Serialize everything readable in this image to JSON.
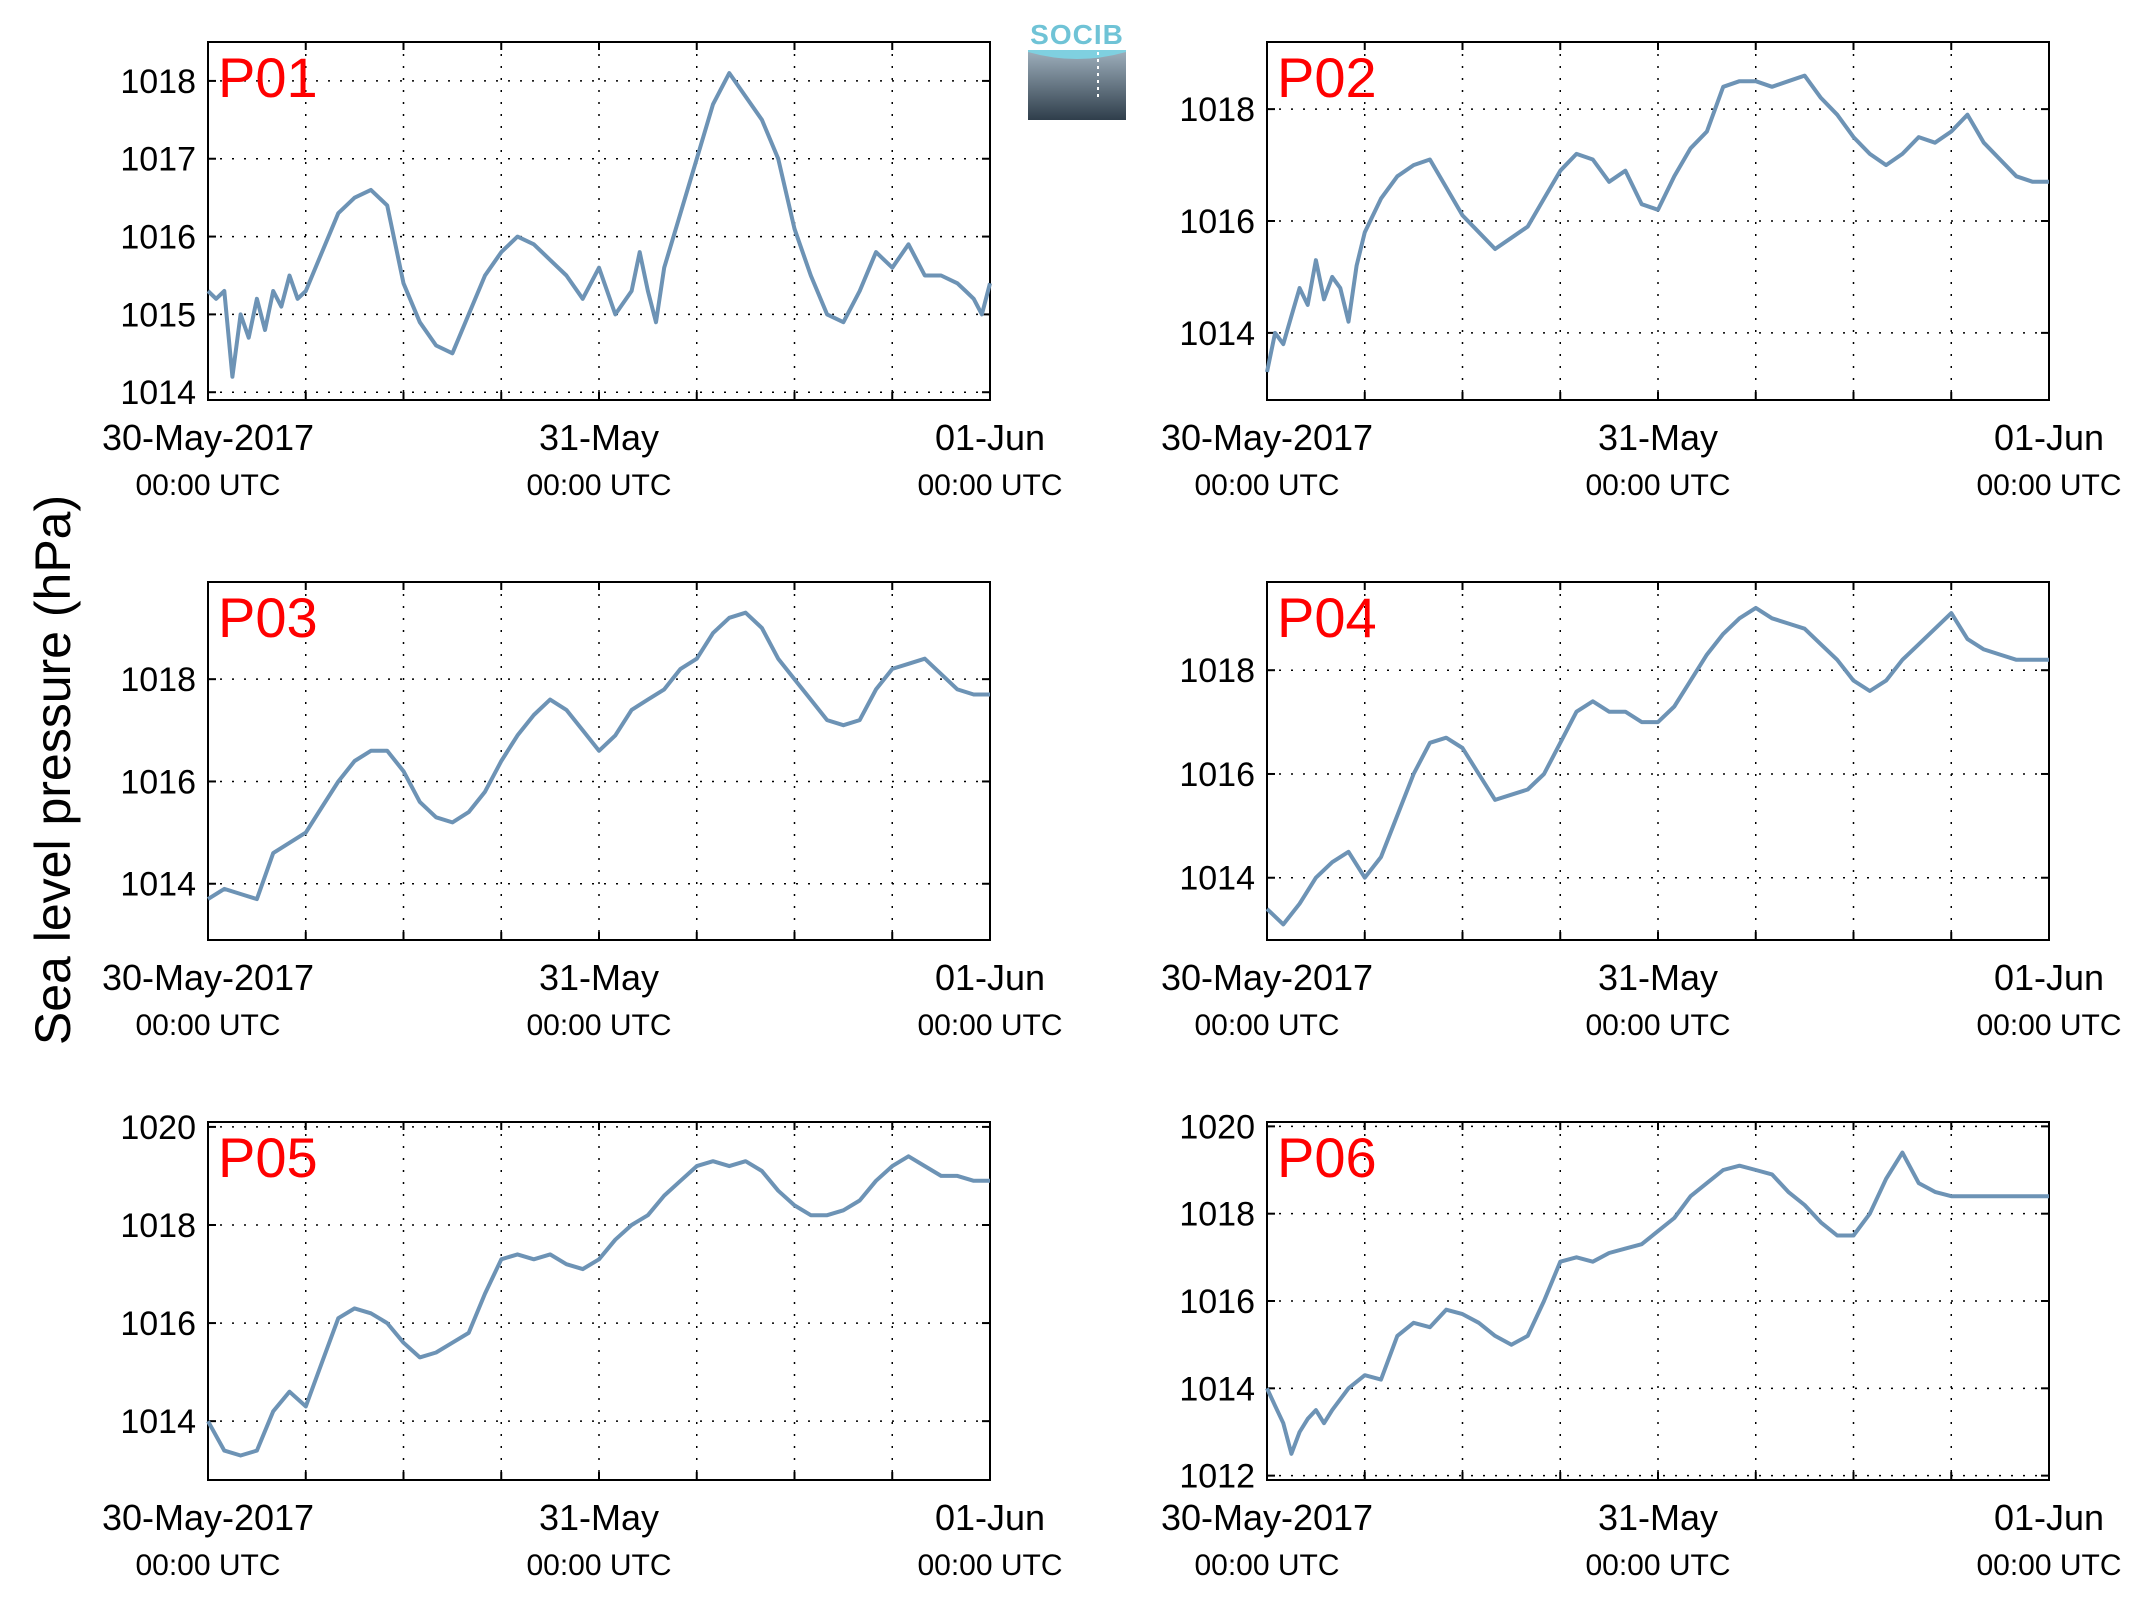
{
  "figure": {
    "ylabel": "Sea level pressure (hPa)",
    "logo_text": "SOCIB",
    "colors": {
      "line": "#6d93b5",
      "panel_label": "#ff0000",
      "axis": "#000000"
    }
  },
  "chart_data": [
    {
      "type": "line",
      "label": "P01",
      "x_ticks": [
        {
          "x": 0,
          "line1": "30-May-2017",
          "line2": "00:00 UTC"
        },
        {
          "x": 24,
          "line1": "31-May",
          "line2": "00:00 UTC"
        },
        {
          "x": 48,
          "line1": "01-Jun",
          "line2": "00:00 UTC"
        }
      ],
      "xlim": [
        0,
        48
      ],
      "ylim": [
        1013.9,
        1018.5
      ],
      "yticks": [
        1014,
        1015,
        1016,
        1017,
        1018
      ],
      "grid": true,
      "series": [
        {
          "x": [
            0,
            0.5,
            1,
            1.5,
            2,
            2.5,
            3,
            3.5,
            4,
            4.5,
            5,
            5.5,
            6,
            7,
            8,
            9,
            10,
            11,
            12,
            13,
            14,
            15,
            16,
            17,
            18,
            19,
            20,
            21,
            22,
            23,
            24,
            25,
            26,
            26.5,
            27,
            27.5,
            28,
            29,
            30,
            31,
            32,
            33,
            34,
            35,
            36,
            37,
            38,
            39,
            40,
            41,
            42,
            43,
            44,
            45,
            46,
            46.5,
            47,
            47.5,
            48
          ],
          "y": [
            1015.3,
            1015.2,
            1015.3,
            1014.2,
            1015.0,
            1014.7,
            1015.2,
            1014.8,
            1015.3,
            1015.1,
            1015.5,
            1015.2,
            1015.3,
            1015.8,
            1016.3,
            1016.5,
            1016.6,
            1016.4,
            1015.4,
            1014.9,
            1014.6,
            1014.5,
            1015.0,
            1015.5,
            1015.8,
            1016.0,
            1015.9,
            1015.7,
            1015.5,
            1015.2,
            1015.6,
            1015.0,
            1015.3,
            1015.8,
            1015.3,
            1014.9,
            1015.6,
            1016.3,
            1017.0,
            1017.7,
            1018.1,
            1017.8,
            1017.5,
            1017.0,
            1016.1,
            1015.5,
            1015.0,
            1014.9,
            1015.3,
            1015.8,
            1015.6,
            1015.9,
            1015.5,
            1015.5,
            1015.4,
            1015.3,
            1015.2,
            1015.0,
            1015.4
          ]
        }
      ]
    },
    {
      "type": "line",
      "label": "P02",
      "x_ticks": [
        {
          "x": 0,
          "line1": "30-May-2017",
          "line2": "00:00 UTC"
        },
        {
          "x": 24,
          "line1": "31-May",
          "line2": "00:00 UTC"
        },
        {
          "x": 48,
          "line1": "01-Jun",
          "line2": "00:00 UTC"
        }
      ],
      "xlim": [
        0,
        48
      ],
      "ylim": [
        1012.8,
        1019.2
      ],
      "yticks": [
        1014,
        1016,
        1018
      ],
      "grid": true,
      "series": [
        {
          "x": [
            0,
            0.5,
            1,
            1.5,
            2,
            2.5,
            3,
            3.5,
            4,
            4.5,
            5,
            5.5,
            6,
            7,
            8,
            9,
            10,
            11,
            12,
            13,
            14,
            15,
            16,
            17,
            18,
            19,
            20,
            21,
            22,
            23,
            24,
            25,
            26,
            27,
            28,
            29,
            30,
            31,
            32,
            33,
            34,
            35,
            36,
            37,
            38,
            39,
            40,
            41,
            42,
            43,
            44,
            45,
            46,
            47,
            48
          ],
          "y": [
            1013.3,
            1014.0,
            1013.8,
            1014.3,
            1014.8,
            1014.5,
            1015.3,
            1014.6,
            1015.0,
            1014.8,
            1014.2,
            1015.2,
            1015.8,
            1016.4,
            1016.8,
            1017.0,
            1017.1,
            1016.6,
            1016.1,
            1015.8,
            1015.5,
            1015.7,
            1015.9,
            1016.4,
            1016.9,
            1017.2,
            1017.1,
            1016.7,
            1016.9,
            1016.3,
            1016.2,
            1016.8,
            1017.3,
            1017.6,
            1018.4,
            1018.5,
            1018.5,
            1018.4,
            1018.5,
            1018.6,
            1018.2,
            1017.9,
            1017.5,
            1017.2,
            1017.0,
            1017.2,
            1017.5,
            1017.4,
            1017.6,
            1017.9,
            1017.4,
            1017.1,
            1016.8,
            1016.7,
            1016.7
          ]
        }
      ]
    },
    {
      "type": "line",
      "label": "P03",
      "x_ticks": [
        {
          "x": 0,
          "line1": "30-May-2017",
          "line2": "00:00 UTC"
        },
        {
          "x": 24,
          "line1": "31-May",
          "line2": "00:00 UTC"
        },
        {
          "x": 48,
          "line1": "01-Jun",
          "line2": "00:00 UTC"
        }
      ],
      "xlim": [
        0,
        48
      ],
      "ylim": [
        1012.9,
        1019.9
      ],
      "yticks": [
        1014,
        1016,
        1018
      ],
      "grid": true,
      "series": [
        {
          "x": [
            0,
            1,
            2,
            3,
            4,
            5,
            6,
            7,
            8,
            9,
            10,
            11,
            12,
            13,
            14,
            15,
            16,
            17,
            18,
            19,
            20,
            21,
            22,
            23,
            24,
            25,
            26,
            27,
            28,
            29,
            30,
            31,
            32,
            33,
            34,
            35,
            36,
            37,
            38,
            39,
            40,
            41,
            42,
            43,
            44,
            45,
            46,
            47,
            48
          ],
          "y": [
            1013.7,
            1013.9,
            1013.8,
            1013.7,
            1014.6,
            1014.8,
            1015.0,
            1015.5,
            1016.0,
            1016.4,
            1016.6,
            1016.6,
            1016.2,
            1015.6,
            1015.3,
            1015.2,
            1015.4,
            1015.8,
            1016.4,
            1016.9,
            1017.3,
            1017.6,
            1017.4,
            1017.0,
            1016.6,
            1016.9,
            1017.4,
            1017.6,
            1017.8,
            1018.2,
            1018.4,
            1018.9,
            1019.2,
            1019.3,
            1019.0,
            1018.4,
            1018.0,
            1017.6,
            1017.2,
            1017.1,
            1017.2,
            1017.8,
            1018.2,
            1018.3,
            1018.4,
            1018.1,
            1017.8,
            1017.7,
            1017.7
          ]
        }
      ]
    },
    {
      "type": "line",
      "label": "P04",
      "x_ticks": [
        {
          "x": 0,
          "line1": "30-May-2017",
          "line2": "00:00 UTC"
        },
        {
          "x": 24,
          "line1": "31-May",
          "line2": "00:00 UTC"
        },
        {
          "x": 48,
          "line1": "01-Jun",
          "line2": "00:00 UTC"
        }
      ],
      "xlim": [
        0,
        48
      ],
      "ylim": [
        1012.8,
        1019.7
      ],
      "yticks": [
        1014,
        1016,
        1018
      ],
      "grid": true,
      "series": [
        {
          "x": [
            0,
            1,
            2,
            3,
            4,
            5,
            6,
            7,
            8,
            9,
            10,
            11,
            12,
            13,
            14,
            15,
            16,
            17,
            18,
            19,
            20,
            21,
            22,
            23,
            24,
            25,
            26,
            27,
            28,
            29,
            30,
            31,
            32,
            33,
            34,
            35,
            36,
            37,
            38,
            39,
            40,
            41,
            42,
            43,
            44,
            45,
            46,
            47,
            48
          ],
          "y": [
            1013.4,
            1013.1,
            1013.5,
            1014.0,
            1014.3,
            1014.5,
            1014.0,
            1014.4,
            1015.2,
            1016.0,
            1016.6,
            1016.7,
            1016.5,
            1016.0,
            1015.5,
            1015.6,
            1015.7,
            1016.0,
            1016.6,
            1017.2,
            1017.4,
            1017.2,
            1017.2,
            1017.0,
            1017.0,
            1017.3,
            1017.8,
            1018.3,
            1018.7,
            1019.0,
            1019.2,
            1019.0,
            1018.9,
            1018.8,
            1018.5,
            1018.2,
            1017.8,
            1017.6,
            1017.8,
            1018.2,
            1018.5,
            1018.8,
            1019.1,
            1018.6,
            1018.4,
            1018.3,
            1018.2,
            1018.2,
            1018.2
          ]
        }
      ]
    },
    {
      "type": "line",
      "label": "P05",
      "x_ticks": [
        {
          "x": 0,
          "line1": "30-May-2017",
          "line2": "00:00 UTC"
        },
        {
          "x": 24,
          "line1": "31-May",
          "line2": "00:00 UTC"
        },
        {
          "x": 48,
          "line1": "01-Jun",
          "line2": "00:00 UTC"
        }
      ],
      "xlim": [
        0,
        48
      ],
      "ylim": [
        1012.8,
        1020.1
      ],
      "yticks": [
        1014,
        1016,
        1018,
        1020
      ],
      "grid": true,
      "series": [
        {
          "x": [
            0,
            1,
            2,
            3,
            4,
            5,
            6,
            7,
            8,
            9,
            10,
            11,
            12,
            13,
            14,
            15,
            16,
            17,
            18,
            19,
            20,
            21,
            22,
            23,
            24,
            25,
            26,
            27,
            28,
            29,
            30,
            31,
            32,
            33,
            34,
            35,
            36,
            37,
            38,
            39,
            40,
            41,
            42,
            43,
            44,
            45,
            46,
            47,
            48
          ],
          "y": [
            1014.0,
            1013.4,
            1013.3,
            1013.4,
            1014.2,
            1014.6,
            1014.3,
            1015.2,
            1016.1,
            1016.3,
            1016.2,
            1016.0,
            1015.6,
            1015.3,
            1015.4,
            1015.6,
            1015.8,
            1016.6,
            1017.3,
            1017.4,
            1017.3,
            1017.4,
            1017.2,
            1017.1,
            1017.3,
            1017.7,
            1018.0,
            1018.2,
            1018.6,
            1018.9,
            1019.2,
            1019.3,
            1019.2,
            1019.3,
            1019.1,
            1018.7,
            1018.4,
            1018.2,
            1018.2,
            1018.3,
            1018.5,
            1018.9,
            1019.2,
            1019.4,
            1019.2,
            1019.0,
            1019.0,
            1018.9,
            1018.9
          ]
        }
      ]
    },
    {
      "type": "line",
      "label": "P06",
      "x_ticks": [
        {
          "x": 0,
          "line1": "30-May-2017",
          "line2": "00:00 UTC"
        },
        {
          "x": 24,
          "line1": "31-May",
          "line2": "00:00 UTC"
        },
        {
          "x": 48,
          "line1": "01-Jun",
          "line2": "00:00 UTC"
        }
      ],
      "xlim": [
        0,
        48
      ],
      "ylim": [
        1011.9,
        1020.1
      ],
      "yticks": [
        1012,
        1014,
        1016,
        1018,
        1020
      ],
      "grid": true,
      "series": [
        {
          "x": [
            0,
            0.5,
            1,
            1.5,
            2,
            2.5,
            3,
            3.5,
            4,
            5,
            6,
            7,
            8,
            9,
            10,
            11,
            12,
            13,
            14,
            15,
            16,
            17,
            18,
            19,
            20,
            21,
            22,
            23,
            24,
            25,
            26,
            27,
            28,
            29,
            30,
            31,
            32,
            33,
            34,
            35,
            36,
            37,
            38,
            39,
            40,
            41,
            42,
            43,
            44,
            45,
            46,
            47,
            48
          ],
          "y": [
            1014.0,
            1013.6,
            1013.2,
            1012.5,
            1013.0,
            1013.3,
            1013.5,
            1013.2,
            1013.5,
            1014.0,
            1014.3,
            1014.2,
            1015.2,
            1015.5,
            1015.4,
            1015.8,
            1015.7,
            1015.5,
            1015.2,
            1015.0,
            1015.2,
            1016.0,
            1016.9,
            1017.0,
            1016.9,
            1017.1,
            1017.2,
            1017.3,
            1017.6,
            1017.9,
            1018.4,
            1018.7,
            1019.0,
            1019.1,
            1019.0,
            1018.9,
            1018.5,
            1018.2,
            1017.8,
            1017.5,
            1017.5,
            1018.0,
            1018.8,
            1019.4,
            1018.7,
            1018.5,
            1018.4,
            1018.4,
            1018.4,
            1018.4,
            1018.4,
            1018.4,
            1018.4
          ]
        }
      ]
    }
  ]
}
